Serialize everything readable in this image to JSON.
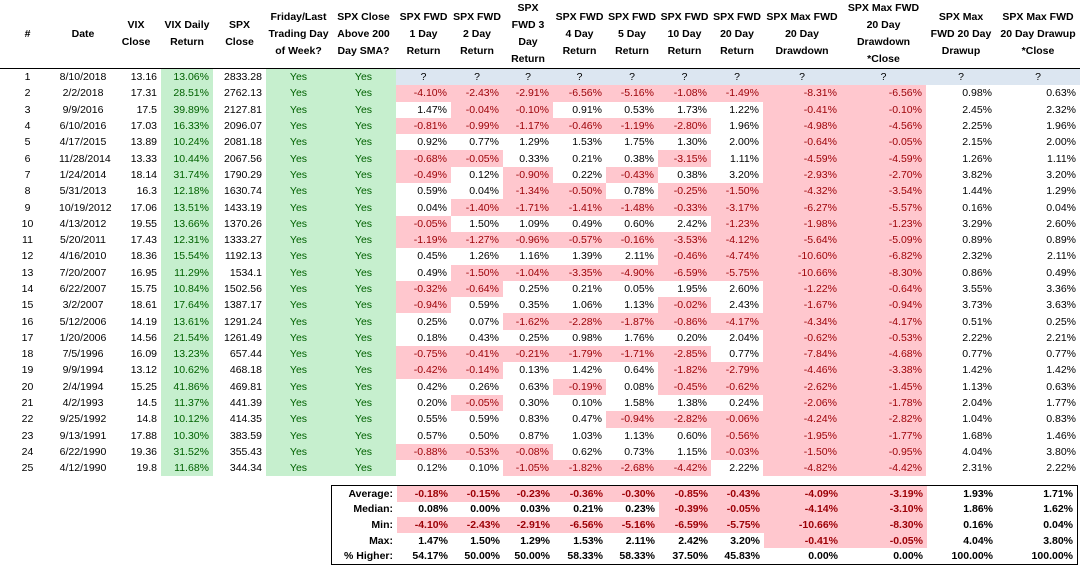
{
  "table": {
    "headers": [
      "#",
      "Date",
      "VIX Close",
      "VIX Daily Return",
      "SPX Close",
      "Friday/Last Trading Day of Week?",
      "SPX Close Above 200 Day SMA?",
      "SPX FWD 1 Day Return",
      "SPX FWD 2 Day Return",
      "SPX FWD 3 Day Return",
      "SPX FWD 4 Day Return",
      "SPX FWD 5 Day Return",
      "SPX FWD 10 Day Return",
      "SPX FWD 20 Day Return",
      "SPX Max FWD 20 Day Drawdown",
      "SPX Max FWD 20 Day Drawdown *Close",
      "SPX Max FWD 20 Day Drawup",
      "SPX Max FWD 20 Day Drawup *Close"
    ],
    "rows": [
      [
        "1",
        "8/10/2018",
        "13.16",
        "13.06%",
        "2833.28",
        "Yes",
        "Yes",
        "?",
        "?",
        "?",
        "?",
        "?",
        "?",
        "?",
        "?",
        "?",
        "?",
        "?"
      ],
      [
        "2",
        "2/2/2018",
        "17.31",
        "28.51%",
        "2762.13",
        "Yes",
        "Yes",
        "-4.10%",
        "-2.43%",
        "-2.91%",
        "-6.56%",
        "-5.16%",
        "-1.08%",
        "-1.49%",
        "-8.31%",
        "-6.56%",
        "0.98%",
        "0.63%"
      ],
      [
        "3",
        "9/9/2016",
        "17.5",
        "39.89%",
        "2127.81",
        "Yes",
        "Yes",
        "1.47%",
        "-0.04%",
        "-0.10%",
        "0.91%",
        "0.53%",
        "1.73%",
        "1.22%",
        "-0.41%",
        "-0.10%",
        "2.45%",
        "2.32%"
      ],
      [
        "4",
        "6/10/2016",
        "17.03",
        "16.33%",
        "2096.07",
        "Yes",
        "Yes",
        "-0.81%",
        "-0.99%",
        "-1.17%",
        "-0.46%",
        "-1.19%",
        "-2.80%",
        "1.96%",
        "-4.98%",
        "-4.56%",
        "2.25%",
        "1.96%"
      ],
      [
        "5",
        "4/17/2015",
        "13.89",
        "10.24%",
        "2081.18",
        "Yes",
        "Yes",
        "0.92%",
        "0.77%",
        "1.29%",
        "1.53%",
        "1.75%",
        "1.30%",
        "2.00%",
        "-0.64%",
        "-0.05%",
        "2.15%",
        "2.00%"
      ],
      [
        "6",
        "11/28/2014",
        "13.33",
        "10.44%",
        "2067.56",
        "Yes",
        "Yes",
        "-0.68%",
        "-0.05%",
        "0.33%",
        "0.21%",
        "0.38%",
        "-3.15%",
        "1.11%",
        "-4.59%",
        "-4.59%",
        "1.26%",
        "1.11%"
      ],
      [
        "7",
        "1/24/2014",
        "18.14",
        "31.74%",
        "1790.29",
        "Yes",
        "Yes",
        "-0.49%",
        "0.12%",
        "-0.90%",
        "0.22%",
        "-0.43%",
        "0.38%",
        "3.20%",
        "-2.93%",
        "-2.70%",
        "3.82%",
        "3.20%"
      ],
      [
        "8",
        "5/31/2013",
        "16.3",
        "12.18%",
        "1630.74",
        "Yes",
        "Yes",
        "0.59%",
        "0.04%",
        "-1.34%",
        "-0.50%",
        "0.78%",
        "-0.25%",
        "-1.50%",
        "-4.32%",
        "-3.54%",
        "1.44%",
        "1.29%"
      ],
      [
        "9",
        "10/19/2012",
        "17.06",
        "13.51%",
        "1433.19",
        "Yes",
        "Yes",
        "0.04%",
        "-1.40%",
        "-1.71%",
        "-1.41%",
        "-1.48%",
        "-0.33%",
        "-3.17%",
        "-6.27%",
        "-5.57%",
        "0.16%",
        "0.04%"
      ],
      [
        "10",
        "4/13/2012",
        "19.55",
        "13.66%",
        "1370.26",
        "Yes",
        "Yes",
        "-0.05%",
        "1.50%",
        "1.09%",
        "0.49%",
        "0.60%",
        "2.42%",
        "-1.23%",
        "-1.98%",
        "-1.23%",
        "3.29%",
        "2.60%"
      ],
      [
        "11",
        "5/20/2011",
        "17.43",
        "12.31%",
        "1333.27",
        "Yes",
        "Yes",
        "-1.19%",
        "-1.27%",
        "-0.96%",
        "-0.57%",
        "-0.16%",
        "-3.53%",
        "-4.12%",
        "-5.64%",
        "-5.09%",
        "0.89%",
        "0.89%"
      ],
      [
        "12",
        "4/16/2010",
        "18.36",
        "15.54%",
        "1192.13",
        "Yes",
        "Yes",
        "0.45%",
        "1.26%",
        "1.16%",
        "1.39%",
        "2.11%",
        "-0.46%",
        "-4.74%",
        "-10.60%",
        "-6.82%",
        "2.32%",
        "2.11%"
      ],
      [
        "13",
        "7/20/2007",
        "16.95",
        "11.29%",
        "1534.1",
        "Yes",
        "Yes",
        "0.49%",
        "-1.50%",
        "-1.04%",
        "-3.35%",
        "-4.90%",
        "-6.59%",
        "-5.75%",
        "-10.66%",
        "-8.30%",
        "0.86%",
        "0.49%"
      ],
      [
        "14",
        "6/22/2007",
        "15.75",
        "10.84%",
        "1502.56",
        "Yes",
        "Yes",
        "-0.32%",
        "-0.64%",
        "0.25%",
        "0.21%",
        "0.05%",
        "1.95%",
        "2.60%",
        "-1.22%",
        "-0.64%",
        "3.55%",
        "3.36%"
      ],
      [
        "15",
        "3/2/2007",
        "18.61",
        "17.64%",
        "1387.17",
        "Yes",
        "Yes",
        "-0.94%",
        "0.59%",
        "0.35%",
        "1.06%",
        "1.13%",
        "-0.02%",
        "2.43%",
        "-1.67%",
        "-0.94%",
        "3.73%",
        "3.63%"
      ],
      [
        "16",
        "5/12/2006",
        "14.19",
        "13.61%",
        "1291.24",
        "Yes",
        "Yes",
        "0.25%",
        "0.07%",
        "-1.62%",
        "-2.28%",
        "-1.87%",
        "-0.86%",
        "-4.17%",
        "-4.34%",
        "-4.17%",
        "0.51%",
        "0.25%"
      ],
      [
        "17",
        "1/20/2006",
        "14.56",
        "21.54%",
        "1261.49",
        "Yes",
        "Yes",
        "0.18%",
        "0.43%",
        "0.25%",
        "0.98%",
        "1.76%",
        "0.20%",
        "2.04%",
        "-0.62%",
        "-0.53%",
        "2.22%",
        "2.21%"
      ],
      [
        "18",
        "7/5/1996",
        "16.09",
        "13.23%",
        "657.44",
        "Yes",
        "Yes",
        "-0.75%",
        "-0.41%",
        "-0.21%",
        "-1.79%",
        "-1.71%",
        "-2.85%",
        "0.77%",
        "-7.84%",
        "-4.68%",
        "0.77%",
        "0.77%"
      ],
      [
        "19",
        "9/9/1994",
        "13.12",
        "10.62%",
        "468.18",
        "Yes",
        "Yes",
        "-0.42%",
        "-0.14%",
        "0.13%",
        "1.42%",
        "0.64%",
        "-1.82%",
        "-2.79%",
        "-4.46%",
        "-3.38%",
        "1.42%",
        "1.42%"
      ],
      [
        "20",
        "2/4/1994",
        "15.25",
        "41.86%",
        "469.81",
        "Yes",
        "Yes",
        "0.42%",
        "0.26%",
        "0.63%",
        "-0.19%",
        "0.08%",
        "-0.45%",
        "-0.62%",
        "-2.62%",
        "-1.45%",
        "1.13%",
        "0.63%"
      ],
      [
        "21",
        "4/2/1993",
        "14.5",
        "11.37%",
        "441.39",
        "Yes",
        "Yes",
        "0.20%",
        "-0.05%",
        "0.30%",
        "0.10%",
        "1.58%",
        "1.38%",
        "0.24%",
        "-2.06%",
        "-1.78%",
        "2.04%",
        "1.77%"
      ],
      [
        "22",
        "9/25/1992",
        "14.8",
        "10.12%",
        "414.35",
        "Yes",
        "Yes",
        "0.55%",
        "0.59%",
        "0.83%",
        "0.47%",
        "-0.94%",
        "-2.82%",
        "-0.06%",
        "-4.24%",
        "-2.82%",
        "1.04%",
        "0.83%"
      ],
      [
        "23",
        "9/13/1991",
        "17.88",
        "10.30%",
        "383.59",
        "Yes",
        "Yes",
        "0.57%",
        "0.50%",
        "0.87%",
        "1.03%",
        "1.13%",
        "0.60%",
        "-0.56%",
        "-1.95%",
        "-1.77%",
        "1.68%",
        "1.46%"
      ],
      [
        "24",
        "6/22/1990",
        "19.36",
        "31.52%",
        "355.43",
        "Yes",
        "Yes",
        "-0.88%",
        "-0.53%",
        "-0.08%",
        "0.62%",
        "0.73%",
        "1.15%",
        "-0.03%",
        "-1.50%",
        "-0.95%",
        "4.04%",
        "3.80%"
      ],
      [
        "25",
        "4/12/1990",
        "19.8",
        "11.68%",
        "344.34",
        "Yes",
        "Yes",
        "0.12%",
        "0.10%",
        "-1.05%",
        "-1.82%",
        "-2.68%",
        "-4.42%",
        "2.22%",
        "-4.82%",
        "-4.42%",
        "2.31%",
        "2.22%"
      ]
    ]
  },
  "summary": {
    "rows": [
      {
        "label": "Average:",
        "values": [
          "-0.18%",
          "-0.15%",
          "-0.23%",
          "-0.36%",
          "-0.30%",
          "-0.85%",
          "-0.43%",
          "-4.09%",
          "-3.19%",
          "1.93%",
          "1.71%"
        ]
      },
      {
        "label": "Median:",
        "values": [
          "0.08%",
          "0.00%",
          "0.03%",
          "0.21%",
          "0.23%",
          "-0.39%",
          "-0.05%",
          "-4.14%",
          "-3.10%",
          "1.86%",
          "1.62%"
        ]
      },
      {
        "label": "Min:",
        "values": [
          "-4.10%",
          "-2.43%",
          "-2.91%",
          "-6.56%",
          "-5.16%",
          "-6.59%",
          "-5.75%",
          "-10.66%",
          "-8.30%",
          "0.16%",
          "0.04%"
        ]
      },
      {
        "label": "Max:",
        "values": [
          "1.47%",
          "1.50%",
          "1.29%",
          "1.53%",
          "2.11%",
          "2.42%",
          "3.20%",
          "-0.41%",
          "-0.05%",
          "4.04%",
          "3.80%"
        ]
      },
      {
        "label": "% Higher:",
        "values": [
          "54.17%",
          "50.00%",
          "50.00%",
          "58.33%",
          "58.33%",
          "37.50%",
          "45.83%",
          "0.00%",
          "0.00%",
          "100.00%",
          "100.00%"
        ]
      }
    ]
  }
}
